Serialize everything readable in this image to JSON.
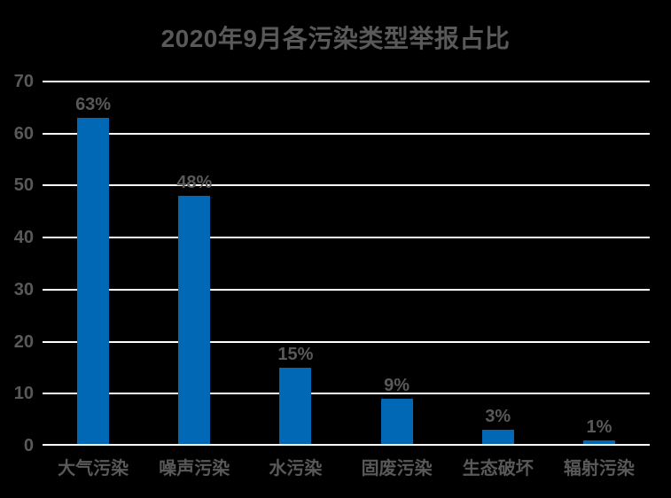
{
  "page": {
    "background": "#000000"
  },
  "chart_data": {
    "type": "bar",
    "title": "2020年9月各污染类型举报占比",
    "categories": [
      "大气污染",
      "噪声污染",
      "水污染",
      "固废污染",
      "生态破坏",
      "辐射污染"
    ],
    "values": [
      63,
      48,
      15,
      9,
      3,
      1
    ],
    "value_labels": [
      "63%",
      "48%",
      "15%",
      "9%",
      "3%",
      "1%"
    ],
    "xlabel": "",
    "ylabel": "",
    "ylim": [
      0,
      70
    ],
    "yticks": [
      0,
      10,
      20,
      30,
      40,
      50,
      60,
      70
    ],
    "grid": "horizontal",
    "legend": "none",
    "colors": {
      "background": "#000000",
      "bar": "#0068B4",
      "text": "#595959",
      "gridline": "#FFFFFF",
      "axis_line": "#FFFFFF"
    }
  }
}
